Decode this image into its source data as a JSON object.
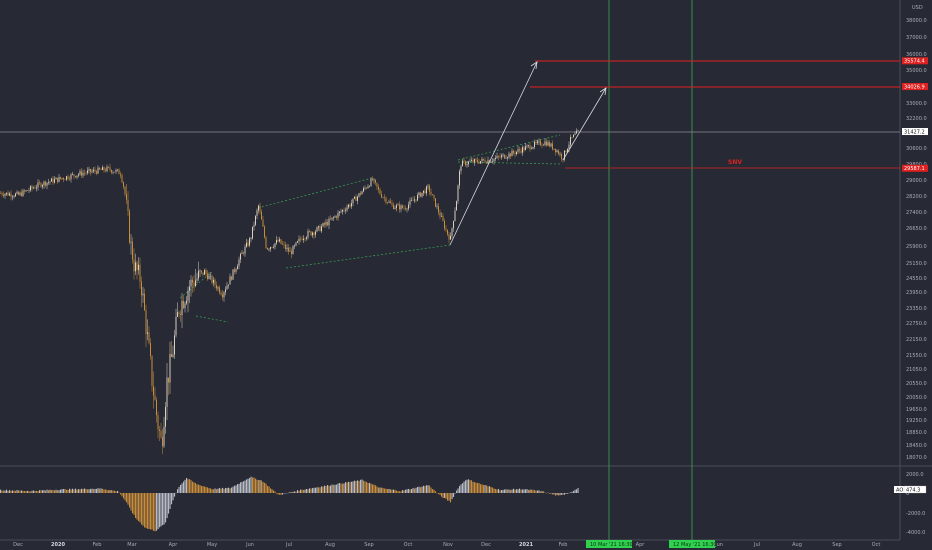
{
  "currency": "USD",
  "colors": {
    "background": "#272a35",
    "candle": "#c98d3a",
    "candle_alt": "#d8cfc0",
    "ao_up": "#b9bcc5",
    "ao_down": "#c98d3a",
    "target_line": "#e02020",
    "label_red": "#e02020",
    "projection": "#d9dbe0",
    "channel": "#3aa655",
    "vline": "#3aa655",
    "tag_green": "#2fd14e",
    "current_line": "#8a8d96"
  },
  "chart_data": {
    "type": "candlestick",
    "y_axis_ticks": [
      "38000.0",
      "37000.0",
      "36000.0",
      "35000.0",
      "34000.0",
      "33000.0",
      "32200.0",
      "31400.0",
      "30600.0",
      "29800.0",
      "29000.0",
      "28200.0",
      "27400.0",
      "26650.0",
      "25900.0",
      "25150.0",
      "24550.0",
      "23950.0",
      "23350.0",
      "22750.0",
      "22150.0",
      "21550.0",
      "21050.0",
      "20550.0",
      "20050.0",
      "19650.0",
      "19250.0",
      "18850.0",
      "18450.0",
      "18070.0"
    ],
    "x_axis_ticks": [
      "Dec",
      "2020",
      "Feb",
      "Mar",
      "Apr",
      "May",
      "Jun",
      "Jul",
      "Aug",
      "Sep",
      "Oct",
      "Nov",
      "Dec",
      "2021",
      "Feb",
      "Apr",
      "May",
      "Jun",
      "Jul",
      "Aug",
      "Sep",
      "Oct"
    ],
    "price_tags": [
      {
        "label": "35574.4",
        "value": 35574.4
      },
      {
        "label": "34026.9",
        "value": 34026.9
      },
      {
        "label": "31427.2",
        "value": 31427.2,
        "current": true
      },
      {
        "label": "29587.1",
        "value": 29587.1
      }
    ],
    "date_tags": [
      "10 Mar '21  16:30",
      "12 May '21  16:30"
    ],
    "annotation": "SNV",
    "indicator": {
      "name": "AO",
      "value": "474.3",
      "axis_ticks": [
        "2000.0",
        "0",
        "-2000.0",
        "-4000.0"
      ]
    },
    "series_monthly_close": [
      {
        "x": "Dec 2019",
        "y": 28350
      },
      {
        "x": "Jan 2020",
        "y": 28900
      },
      {
        "x": "Feb 2020",
        "y": 29450
      },
      {
        "x": "Feb 2020 low",
        "y": 25400
      },
      {
        "x": "Mar 2020",
        "y": 18400
      },
      {
        "x": "Apr 2020",
        "y": 24300
      },
      {
        "x": "May 2020",
        "y": 25000
      },
      {
        "x": "Jun 2020",
        "y": 27500
      },
      {
        "x": "Jul 2020",
        "y": 26400
      },
      {
        "x": "Aug 2020",
        "y": 27900
      },
      {
        "x": "Sep 2020",
        "y": 28900
      },
      {
        "x": "Oct 2020",
        "y": 27800
      },
      {
        "x": "Nov 2020",
        "y": 26500
      },
      {
        "x": "Dec 2020",
        "y": 30200
      },
      {
        "x": "Jan 2021",
        "y": 30900
      },
      {
        "x": "Feb 2021",
        "y": 31400
      }
    ]
  }
}
